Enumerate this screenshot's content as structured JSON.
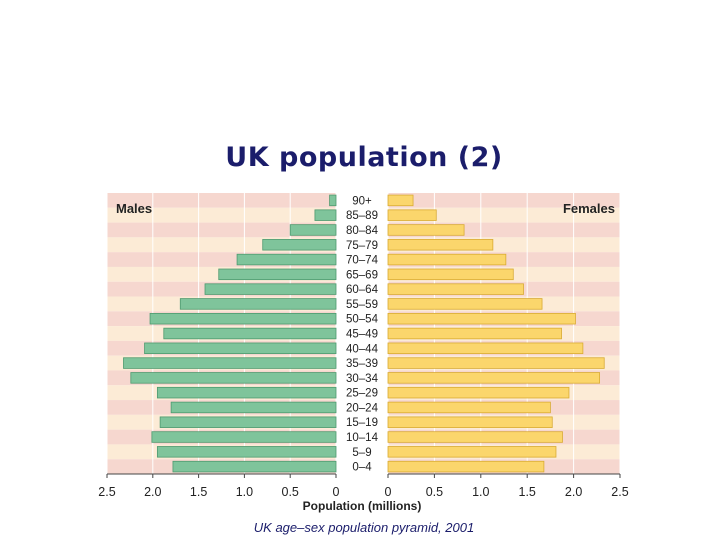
{
  "slide": {
    "title": "UK population (2)",
    "caption": "UK age–sex population pyramid, 2001"
  },
  "chart_data": {
    "type": "bar",
    "orientation": "horizontal-pyramid",
    "categories": [
      "0–4",
      "5–9",
      "10–14",
      "15–19",
      "20–24",
      "25–29",
      "30–34",
      "35–39",
      "40–44",
      "45–49",
      "50–54",
      "55–59",
      "60–64",
      "65–69",
      "70–74",
      "75–79",
      "80–84",
      "85–89",
      "90+"
    ],
    "series": [
      {
        "name": "Males",
        "values": [
          1.78,
          1.95,
          2.01,
          1.92,
          1.8,
          1.95,
          2.24,
          2.32,
          2.09,
          1.88,
          2.03,
          1.7,
          1.43,
          1.28,
          1.08,
          0.8,
          0.5,
          0.23,
          0.07
        ]
      },
      {
        "name": "Females",
        "values": [
          1.68,
          1.81,
          1.88,
          1.77,
          1.75,
          1.95,
          2.28,
          2.33,
          2.1,
          1.87,
          2.02,
          1.66,
          1.46,
          1.35,
          1.27,
          1.13,
          0.82,
          0.52,
          0.27
        ]
      }
    ],
    "xlabel": "Population (millions)",
    "xlim": [
      0,
      2.5
    ],
    "x_ticks": [
      "0",
      "0.5",
      "1.0",
      "1.5",
      "2.0",
      "2.5"
    ],
    "grid": true,
    "colors": {
      "males": "#7fc49b",
      "males_stroke": "#4e9a6f",
      "females": "#fbd66c",
      "females_stroke": "#d9ab33",
      "band_pink": "#f6d7cf",
      "band_cream": "#fcebd6",
      "gridline": "#ffffff",
      "axis": "#444444",
      "text": "#222222"
    }
  }
}
